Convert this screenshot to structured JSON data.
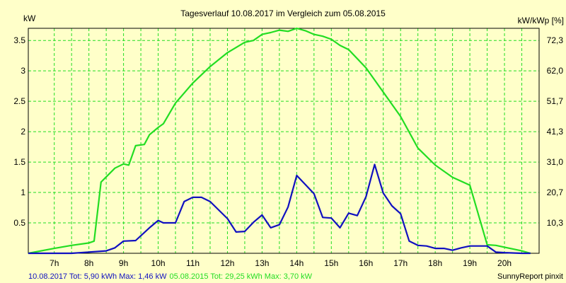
{
  "chart_data": {
    "type": "line",
    "title": "Tagesverlauf 10.08.2017 im Vergleich zum 05.08.2015",
    "ylabel_left": "kW",
    "ylabel_right": "kW/kWp [%]",
    "x_ticks": [
      "7h",
      "8h",
      "9h",
      "10h",
      "11h",
      "12h",
      "13h",
      "14h",
      "15h",
      "16h",
      "17h",
      "18h",
      "19h",
      "20h"
    ],
    "y_ticks_left": [
      "0.5",
      "1",
      "1.5",
      "2",
      "2.5",
      "3",
      "3.5"
    ],
    "y_ticks_right": [
      "10,3",
      "20,7",
      "31,0",
      "41,3",
      "51,7",
      "62,0",
      "72,3"
    ],
    "xlim": [
      6.25,
      21.0
    ],
    "ylim": [
      0,
      3.7
    ],
    "grid": true,
    "series": [
      {
        "name": "05.08.2015",
        "color": "#22dd22",
        "x": [
          6.25,
          7.0,
          7.5,
          8.0,
          8.15,
          8.35,
          8.75,
          9.0,
          9.15,
          9.35,
          9.6,
          9.75,
          10.0,
          10.15,
          10.5,
          11.0,
          11.5,
          12.0,
          12.5,
          12.75,
          13.0,
          13.25,
          13.5,
          13.75,
          14.0,
          14.25,
          14.5,
          14.75,
          15.0,
          15.25,
          15.5,
          16.0,
          16.5,
          17.0,
          17.5,
          18.0,
          18.5,
          19.0,
          19.5,
          19.75,
          20.0,
          20.5,
          20.75
        ],
        "values": [
          0,
          0.08,
          0.13,
          0.17,
          0.2,
          1.17,
          1.4,
          1.47,
          1.45,
          1.77,
          1.79,
          1.95,
          2.07,
          2.13,
          2.47,
          2.8,
          3.07,
          3.3,
          3.47,
          3.5,
          3.6,
          3.63,
          3.67,
          3.65,
          3.7,
          3.66,
          3.6,
          3.57,
          3.52,
          3.42,
          3.35,
          3.05,
          2.65,
          2.25,
          1.73,
          1.45,
          1.25,
          1.12,
          0.14,
          0.13,
          0.1,
          0.04,
          0
        ]
      },
      {
        "name": "10.08.2017",
        "color": "#1010c0",
        "x": [
          6.25,
          7.0,
          7.5,
          8.0,
          8.5,
          8.75,
          9.0,
          9.35,
          9.75,
          10.0,
          10.15,
          10.5,
          10.75,
          11.0,
          11.25,
          11.5,
          12.0,
          12.25,
          12.5,
          12.75,
          13.0,
          13.25,
          13.5,
          13.75,
          14.0,
          14.25,
          14.5,
          14.75,
          15.0,
          15.25,
          15.5,
          15.75,
          16.0,
          16.25,
          16.5,
          16.75,
          17.0,
          17.25,
          17.5,
          17.75,
          18.0,
          18.25,
          18.5,
          18.75,
          19.0,
          19.25,
          19.5,
          19.75,
          20.0,
          20.5,
          20.75
        ],
        "values": [
          0,
          0,
          0,
          0.02,
          0.04,
          0.09,
          0.2,
          0.21,
          0.42,
          0.54,
          0.5,
          0.5,
          0.85,
          0.92,
          0.92,
          0.85,
          0.57,
          0.35,
          0.36,
          0.51,
          0.63,
          0.42,
          0.47,
          0.76,
          1.28,
          1.13,
          0.98,
          0.59,
          0.58,
          0.42,
          0.66,
          0.62,
          0.93,
          1.46,
          0.99,
          0.78,
          0.65,
          0.2,
          0.13,
          0.12,
          0.08,
          0.08,
          0.05,
          0.09,
          0.12,
          0.12,
          0.12,
          0.02,
          0.01,
          0,
          0
        ]
      }
    ]
  },
  "footer": {
    "series2017_label": "10.08.2017 Tot: 5,90 kWh Max: 1,46 kW",
    "series2015_label": "05.08.2015 Tot: 29,25 kWh Max: 3,70 kW",
    "credit": "SunnyReport pinxit"
  }
}
